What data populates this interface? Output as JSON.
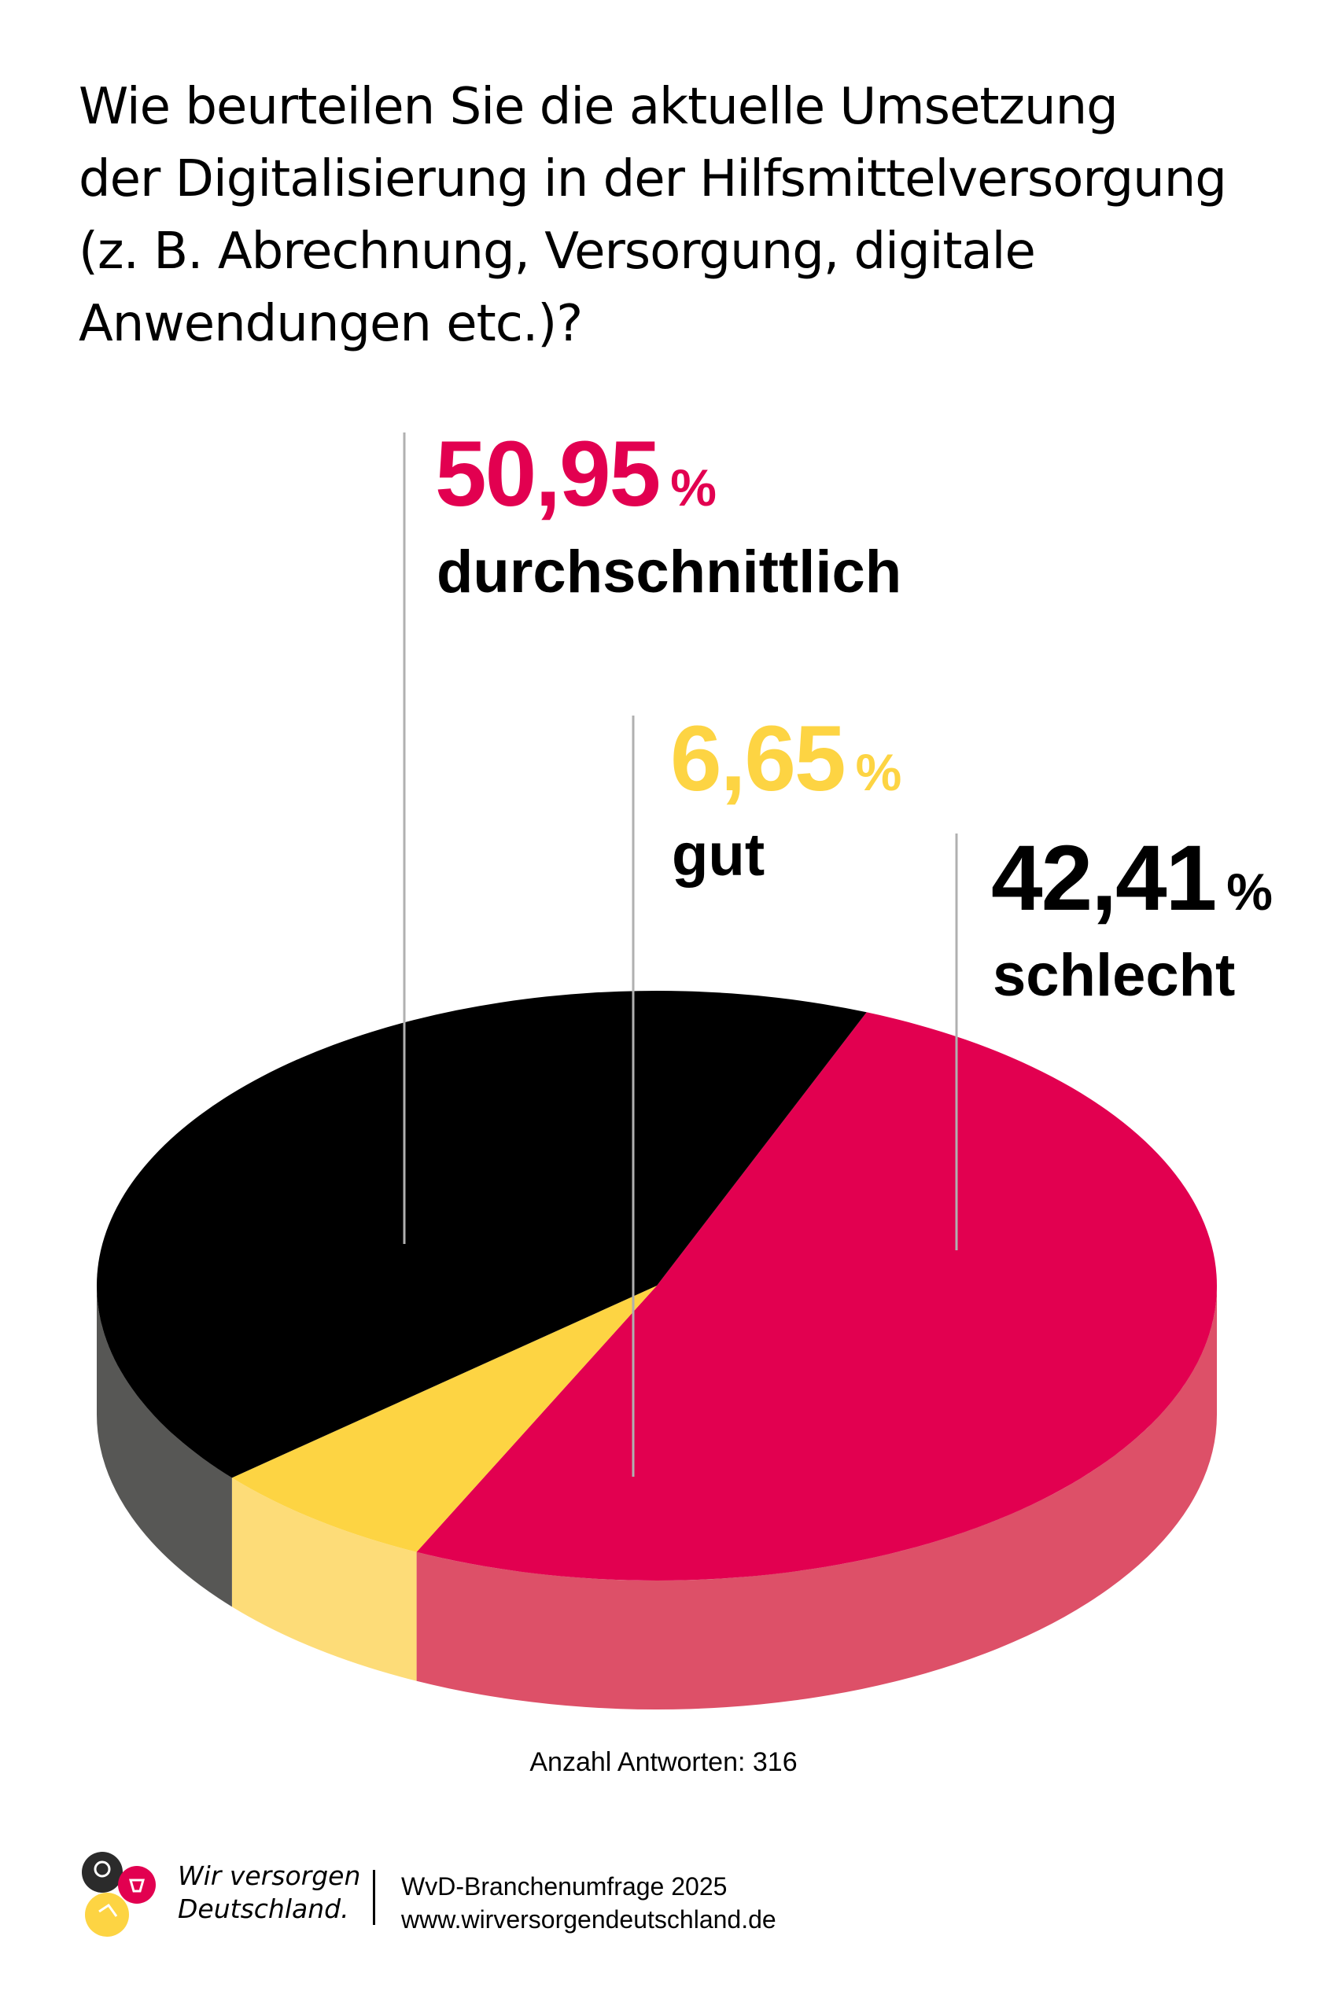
{
  "title": {
    "lines": [
      "Wie beurteilen Sie die aktuelle Umsetzung",
      "der Digitalisierung in der Hilfsmittelversorgung",
      "(z. B. Abrechnung, Versorgung, digitale",
      "Anwendungen etc.)?"
    ]
  },
  "chart_data": {
    "type": "pie",
    "title": "Wie beurteilen Sie die aktuelle Umsetzung der Digitalisierung in der Hilfsmittelversorgung (z. B. Abrechnung, Versorgung, digitale Anwendungen etc.)?",
    "unit": "%",
    "slices": [
      {
        "label": "durchschnittlich",
        "value": 50.95,
        "value_text": "50,95",
        "color": "#e20050",
        "side_color": "#dd5068"
      },
      {
        "label": "gut",
        "value": 6.65,
        "value_text": "6,65",
        "color": "#fdd443",
        "side_color": "#fddc78"
      },
      {
        "label": "schlecht",
        "value": 42.41,
        "value_text": "42,41",
        "color": "#000000",
        "side_color": "#575755"
      }
    ],
    "note": "Anzahl Antworten: 316"
  },
  "footer": {
    "brand_line1": "Wir versorgen",
    "brand_line2": "Deutschland.",
    "survey": "WvD-Branchenumfrage 2025",
    "url": "www.wirversorgendeutschland.de"
  }
}
